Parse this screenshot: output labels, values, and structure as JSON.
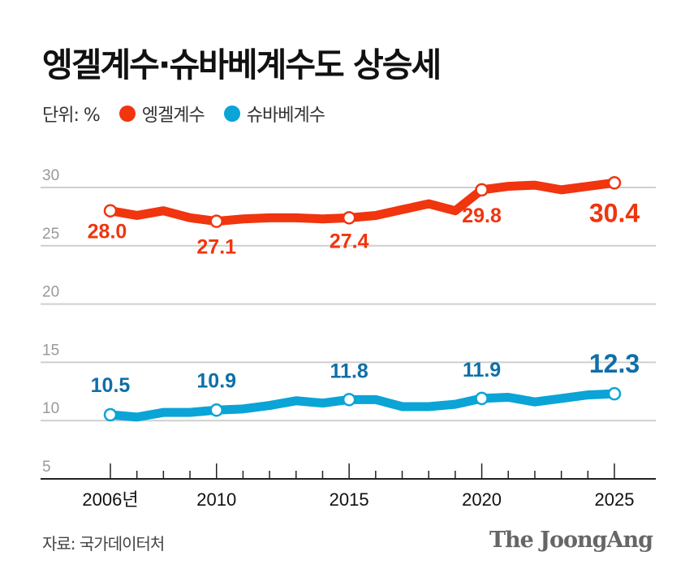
{
  "title": "엥겔계수·슈바베계수도 상승세",
  "unit_label": "단위: %",
  "source": "자료: 국가데이터처",
  "logo_text": "The JoongAng",
  "chart_data": {
    "type": "line",
    "x": [
      2006,
      2007,
      2008,
      2009,
      2010,
      2011,
      2012,
      2013,
      2014,
      2015,
      2016,
      2017,
      2018,
      2019,
      2020,
      2021,
      2022,
      2023,
      2024,
      2025
    ],
    "x_tick_labels": [
      {
        "x": 2006,
        "label": "2006년"
      },
      {
        "x": 2010,
        "label": "2010"
      },
      {
        "x": 2015,
        "label": "2015"
      },
      {
        "x": 2020,
        "label": "2020"
      },
      {
        "x": 2025,
        "label": "2025"
      }
    ],
    "y_ticks": [
      "5",
      "10",
      "15",
      "20",
      "25",
      "30"
    ],
    "ylim": [
      5,
      30
    ],
    "grid": true,
    "legend_position": "top-left",
    "series": [
      {
        "name": "엥겔계수",
        "color": "#f0350f",
        "values": [
          28.0,
          27.6,
          28.0,
          27.4,
          27.1,
          27.3,
          27.4,
          27.4,
          27.3,
          27.4,
          27.6,
          28.1,
          28.6,
          28.0,
          29.8,
          30.1,
          30.2,
          29.8,
          30.1,
          30.4
        ],
        "data_labels": [
          {
            "x": 2006,
            "label": "28.0"
          },
          {
            "x": 2010,
            "label": "27.1"
          },
          {
            "x": 2015,
            "label": "27.4"
          },
          {
            "x": 2020,
            "label": "29.8"
          },
          {
            "x": 2025,
            "label": "30.4"
          }
        ]
      },
      {
        "name": "슈바베계수",
        "color": "#0aa4d6",
        "label_color": "#0d6fa8",
        "values": [
          10.5,
          10.3,
          10.7,
          10.7,
          10.9,
          11.0,
          11.3,
          11.7,
          11.5,
          11.8,
          11.8,
          11.2,
          11.2,
          11.4,
          11.9,
          12.0,
          11.6,
          11.9,
          12.2,
          12.3
        ],
        "data_labels": [
          {
            "x": 2006,
            "label": "10.5"
          },
          {
            "x": 2010,
            "label": "10.9"
          },
          {
            "x": 2015,
            "label": "11.8"
          },
          {
            "x": 2020,
            "label": "11.9"
          },
          {
            "x": 2025,
            "label": "12.3"
          }
        ]
      }
    ]
  }
}
